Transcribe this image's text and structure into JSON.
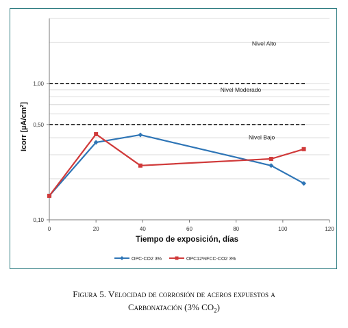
{
  "chart_data": {
    "type": "line",
    "xlabel": "Tiempo de exposición, días",
    "ylabel": "Icorr [µA/cm²]",
    "ylabel_base": "Icorr [µA/cm",
    "ylabel_sup": "2",
    "ylabel_end": "]",
    "x_ticks": [
      0,
      20,
      40,
      60,
      80,
      100,
      120
    ],
    "xlim": [
      0,
      120
    ],
    "ylim": [
      0.1,
      3.0
    ],
    "y_scale": "log",
    "y_ticks": [
      0.1,
      0.5,
      1.0
    ],
    "y_tick_labels": [
      "0,10",
      "0,50",
      "1,00"
    ],
    "thresholds": [
      1.0,
      0.5
    ],
    "zones": [
      {
        "label": "Nivel Alto",
        "x": 92,
        "y": 1.9
      },
      {
        "label": "Nivel Moderado",
        "x": 82,
        "y": 0.87
      },
      {
        "label": "Nivel Bajo",
        "x": 91,
        "y": 0.39
      }
    ],
    "series": [
      {
        "name": "OPC-CO2 3%",
        "color": "#2e75b6",
        "marker": "diamond",
        "x": [
          0,
          20,
          39,
          95,
          109
        ],
        "y": [
          0.15,
          0.37,
          0.42,
          0.25,
          0.185
        ]
      },
      {
        "name": "OPC12%FCC-CO2 3%",
        "color": "#d03a3a",
        "marker": "square",
        "x": [
          0,
          20,
          39,
          95,
          109
        ],
        "y": [
          0.15,
          0.425,
          0.25,
          0.28,
          0.33
        ]
      }
    ],
    "legend_position": "bottom-center",
    "grid": true
  },
  "caption": {
    "line1": "Figura 5. Velocidad de corrosión de aceros expuestos a",
    "line2_prefix": "Carbonatación (3% CO",
    "line2_sub": "2",
    "line2_suffix": ")"
  }
}
